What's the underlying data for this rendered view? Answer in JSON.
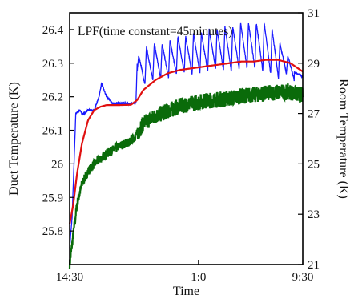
{
  "chart_data": {
    "type": "line",
    "annotation": "LPF(time constant=45minutes)",
    "xlabel": "Time",
    "ylabel_left": "Duct Temperature (K)",
    "ylabel_right": "Room Temperature (K)",
    "x_ticks": [
      "14:30",
      "1:0",
      "9:30"
    ],
    "x_range_hours": [
      0,
      19
    ],
    "x_unit": "hours since 14:30",
    "ylim_left": [
      25.7,
      26.45
    ],
    "ylim_right": [
      21,
      31
    ],
    "y_ticks_left": [
      "25.8",
      "25.9",
      "26",
      "26.1",
      "26.2",
      "26.3",
      "26.4"
    ],
    "y_ticks_right": [
      "21",
      "23",
      "25",
      "27",
      "29",
      "31"
    ],
    "grid": false,
    "colors": {
      "blue": "#1a1aff",
      "red": "#e01010",
      "green": "#0a6b0a"
    },
    "series": [
      {
        "color": "blue",
        "axis": "left",
        "x": [
          0,
          0.2,
          0.5,
          0.8,
          1.0,
          1.2,
          1.5,
          2.0,
          2.4,
          2.6,
          3.0,
          3.5,
          4.0,
          4.5,
          5.0,
          5.4,
          5.5,
          6.0,
          7.0,
          8.0,
          9.0,
          10.0,
          11.0,
          12.0,
          13.0,
          14.0,
          15.0,
          16.0,
          17.0,
          17.5,
          18.0,
          19.0
        ],
        "values": [
          25.75,
          25.84,
          26.15,
          26.16,
          26.15,
          26.15,
          26.16,
          26.16,
          26.2,
          26.24,
          26.2,
          26.18,
          26.18,
          26.18,
          26.18,
          26.18,
          26.3,
          26.26,
          26.28,
          26.28,
          26.3,
          26.29,
          26.3,
          26.31,
          26.3,
          26.31,
          26.31,
          26.3,
          26.28,
          26.3,
          26.28,
          26.26
        ],
        "spike_peaks": [
          26.32,
          26.35,
          26.36,
          26.36,
          26.37,
          26.38,
          26.38,
          26.39,
          26.39,
          26.4,
          26.4,
          26.41,
          26.41,
          26.42,
          26.42,
          26.42,
          26.42,
          26.4,
          26.36,
          26.32
        ]
      },
      {
        "color": "red",
        "axis": "left",
        "x": [
          0,
          0.3,
          0.6,
          1.0,
          1.5,
          2.0,
          2.5,
          3.0,
          4.0,
          5.0,
          5.5,
          6.0,
          7.0,
          8.0,
          9.0,
          10.0,
          11.0,
          12.0,
          13.0,
          14.0,
          15.0,
          16.0,
          17.0,
          18.0,
          19.0
        ],
        "values": [
          25.82,
          25.88,
          25.97,
          26.06,
          26.13,
          26.16,
          26.17,
          26.175,
          26.175,
          26.176,
          26.19,
          26.22,
          26.25,
          26.27,
          26.28,
          26.285,
          26.29,
          26.295,
          26.3,
          26.305,
          26.305,
          26.31,
          26.31,
          26.3,
          26.275
        ]
      },
      {
        "color": "green",
        "axis": "right",
        "x": [
          0,
          0.3,
          0.6,
          1.0,
          1.5,
          2.0,
          3.0,
          4.0,
          5.0,
          5.5,
          6.0,
          7.0,
          8.0,
          9.0,
          10.0,
          11.0,
          12.0,
          13.0,
          14.0,
          15.0,
          16.0,
          17.0,
          18.0,
          19.0
        ],
        "values": [
          21.0,
          22.2,
          23.4,
          24.2,
          24.7,
          25.0,
          25.4,
          25.7,
          25.9,
          26.2,
          26.6,
          26.9,
          27.1,
          27.3,
          27.4,
          27.5,
          27.55,
          27.6,
          27.7,
          27.75,
          27.8,
          27.85,
          27.85,
          27.7
        ]
      }
    ]
  }
}
